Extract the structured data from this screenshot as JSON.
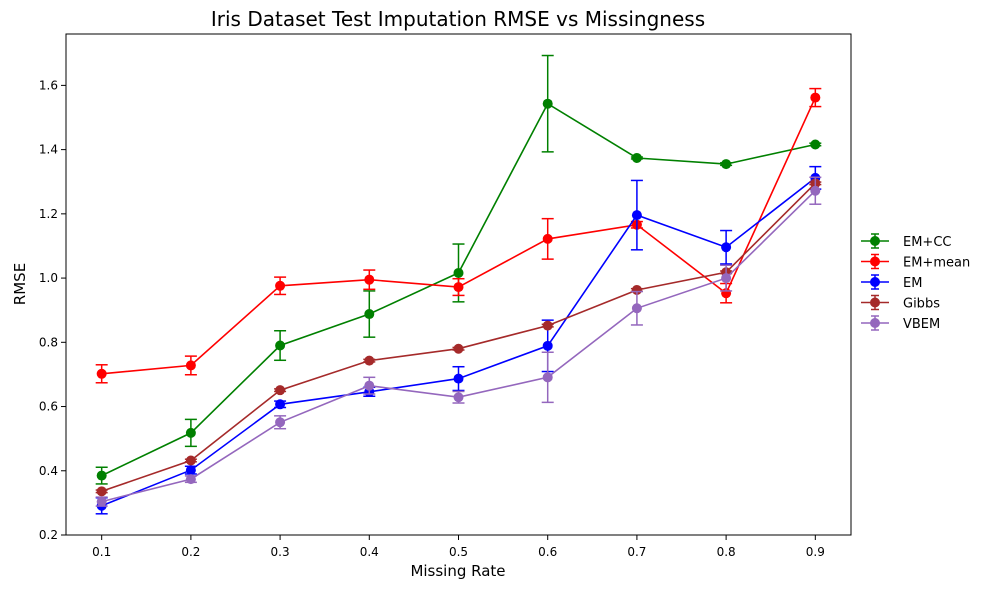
{
  "chart_data": {
    "type": "line",
    "title": "Iris Dataset Test Imputation RMSE vs Missingness",
    "xlabel": "Missing Rate",
    "ylabel": "RMSE",
    "x": [
      0.1,
      0.2,
      0.3,
      0.4,
      0.5,
      0.6,
      0.7,
      0.8,
      0.9
    ],
    "x_tick_labels": [
      "0.1",
      "0.2",
      "0.3",
      "0.4",
      "0.5",
      "0.6",
      "0.7",
      "0.8",
      "0.9"
    ],
    "y_ticks": [
      0.2,
      0.4,
      0.6,
      0.8,
      1.0,
      1.2,
      1.4,
      1.6
    ],
    "y_tick_labels": [
      "0.2",
      "0.4",
      "0.6",
      "0.8",
      "1.0",
      "1.2",
      "1.4",
      "1.6"
    ],
    "xlim": [
      0.06,
      0.94
    ],
    "ylim": [
      0.2,
      1.76
    ],
    "grid": false,
    "legend_position": "right, outside",
    "series": [
      {
        "name": "EM+CC",
        "color": "#008000",
        "values": [
          0.385,
          0.518,
          0.79,
          0.888,
          1.016,
          1.543,
          1.374,
          1.355,
          1.416
        ],
        "errors": [
          0.026,
          0.042,
          0.046,
          0.072,
          0.09,
          0.15,
          0.003,
          0.004,
          0.004
        ]
      },
      {
        "name": "EM+mean",
        "color": "#ff0000",
        "values": [
          0.702,
          0.728,
          0.976,
          0.995,
          0.972,
          1.122,
          1.166,
          0.953,
          1.562
        ],
        "errors": [
          0.028,
          0.029,
          0.027,
          0.03,
          0.026,
          0.063,
          0.01,
          0.03,
          0.028
        ]
      },
      {
        "name": "EM",
        "color": "#0000ff",
        "values": [
          0.291,
          0.402,
          0.607,
          0.646,
          0.687,
          0.789,
          1.196,
          1.096,
          1.312
        ],
        "errors": [
          0.025,
          0.012,
          0.01,
          0.014,
          0.037,
          0.08,
          0.108,
          0.052,
          0.035
        ]
      },
      {
        "name": "Gibbs",
        "color": "#a52a2a",
        "values": [
          0.336,
          0.432,
          0.651,
          0.743,
          0.78,
          0.852,
          0.963,
          1.018,
          1.295
        ],
        "errors": [
          0.004,
          0.004,
          0.004,
          0.004,
          0.004,
          0.004,
          0.004,
          0.004,
          0.004
        ]
      },
      {
        "name": "VBEM",
        "color": "#9467bd",
        "values": [
          0.304,
          0.374,
          0.551,
          0.665,
          0.629,
          0.691,
          0.906,
          1.0,
          1.272
        ],
        "errors": [
          0.014,
          0.01,
          0.02,
          0.026,
          0.018,
          0.078,
          0.052,
          0.04,
          0.042
        ]
      }
    ]
  }
}
